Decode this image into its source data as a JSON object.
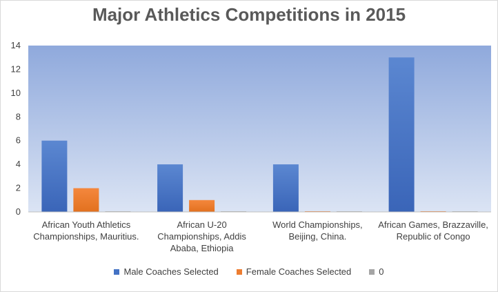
{
  "chart_data": {
    "type": "bar",
    "title": "Major Athletics Competitions in 2015",
    "categories": [
      [
        "African Youth Athletics",
        "Championships, Mauritius."
      ],
      [
        "African U-20",
        "Championships, Addis",
        "Ababa, Ethiopia"
      ],
      [
        "World Championships,",
        "Beijing, China."
      ],
      [
        "African Games, Brazzaville,",
        "Republic of Congo"
      ]
    ],
    "series": [
      {
        "name": "Male Coaches Selected",
        "values": [
          6,
          4,
          4,
          13
        ],
        "color": "#4472c4"
      },
      {
        "name": "Female Coaches Selected",
        "values": [
          2,
          1,
          0,
          0
        ],
        "color": "#ed7d31"
      },
      {
        "name": "0",
        "values": [
          0,
          0,
          0,
          0
        ],
        "color": "#a5a5a5"
      }
    ],
    "ylim": [
      0,
      14
    ],
    "yticks": [
      "0",
      "2",
      "4",
      "6",
      "8",
      "10",
      "12",
      "14"
    ],
    "grid": false,
    "legend_position": "bottom"
  }
}
